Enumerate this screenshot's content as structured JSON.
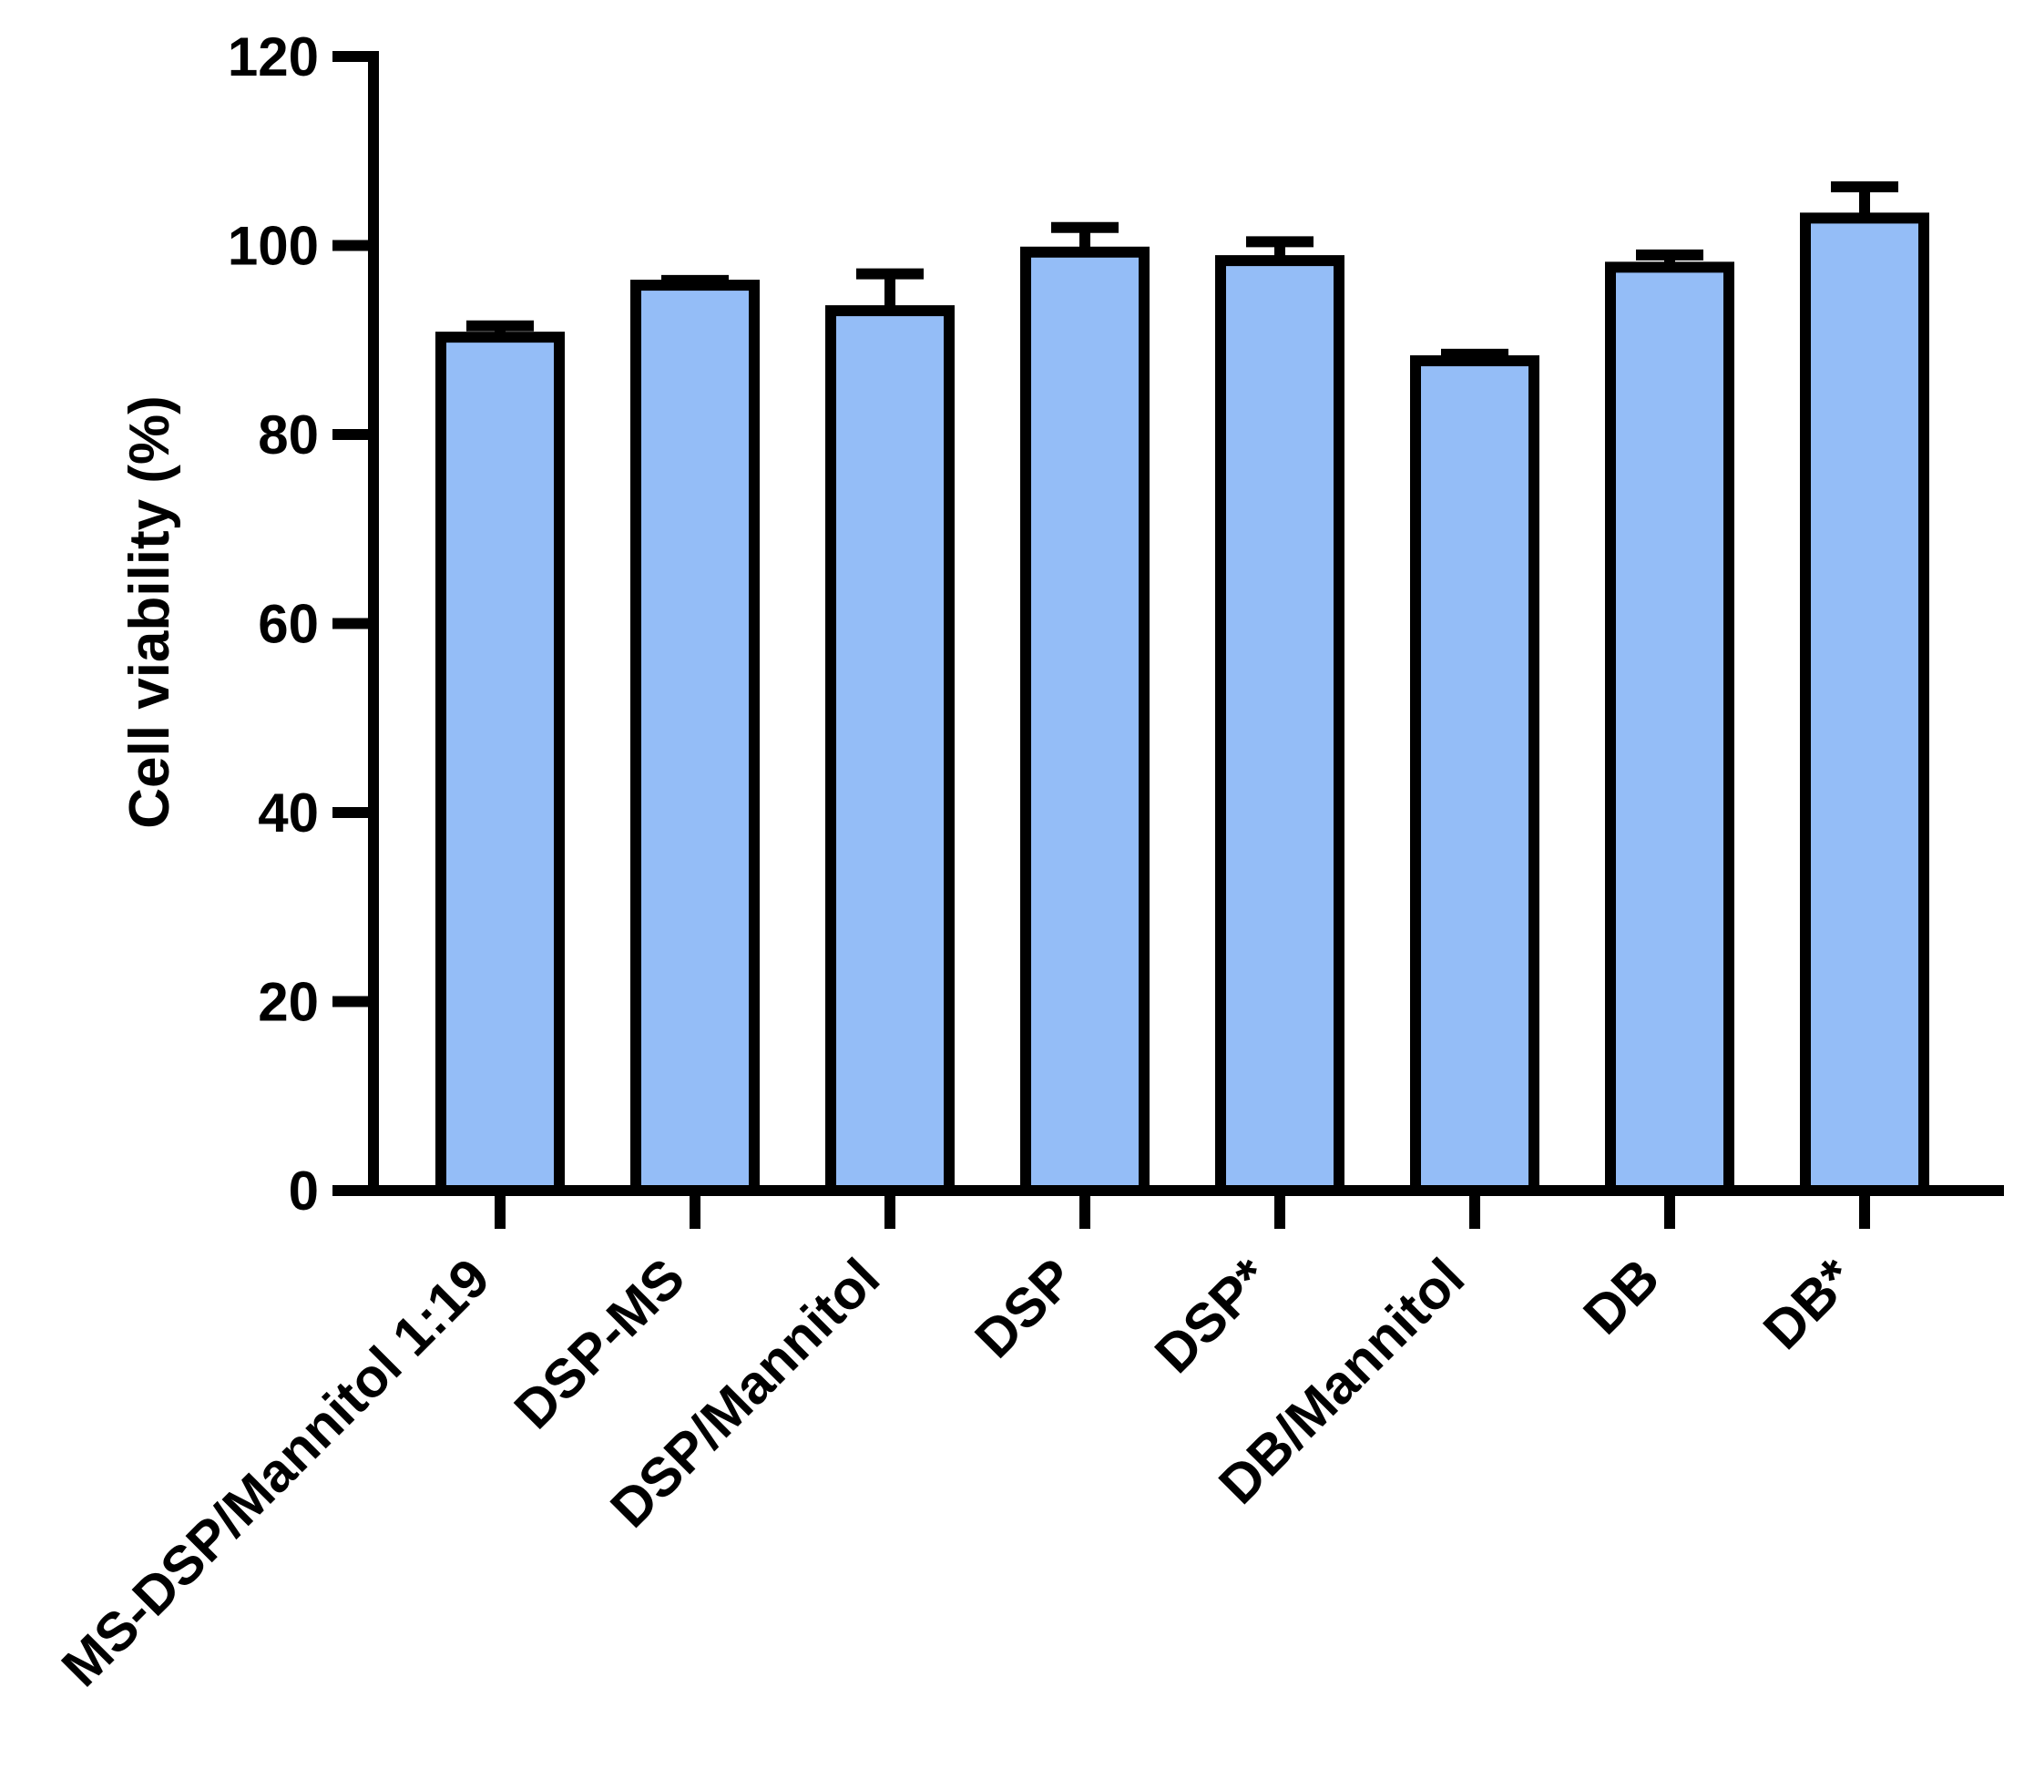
{
  "chart_data": {
    "type": "bar",
    "title": "",
    "xlabel": "",
    "ylabel": "Cell viability (%)",
    "ylim": [
      0,
      120
    ],
    "yticks": [
      0,
      20,
      40,
      60,
      80,
      100,
      120
    ],
    "grid": false,
    "categories": [
      "MS-DSP/Mannitol 1:19",
      "DSP-MS",
      "DSP/Mannitol",
      "DSP",
      "DSP*",
      "DB/Mannitol",
      "DB",
      "DB*"
    ],
    "values": [
      90.3,
      95.8,
      93.1,
      99.3,
      98.4,
      87.8,
      97.7,
      102.9
    ],
    "errors": [
      1.2,
      0.5,
      3.9,
      2.6,
      2.0,
      0.7,
      1.3,
      3.3
    ],
    "colors": {
      "bar_fill": "#94BDF7",
      "stroke": "#000000"
    }
  }
}
